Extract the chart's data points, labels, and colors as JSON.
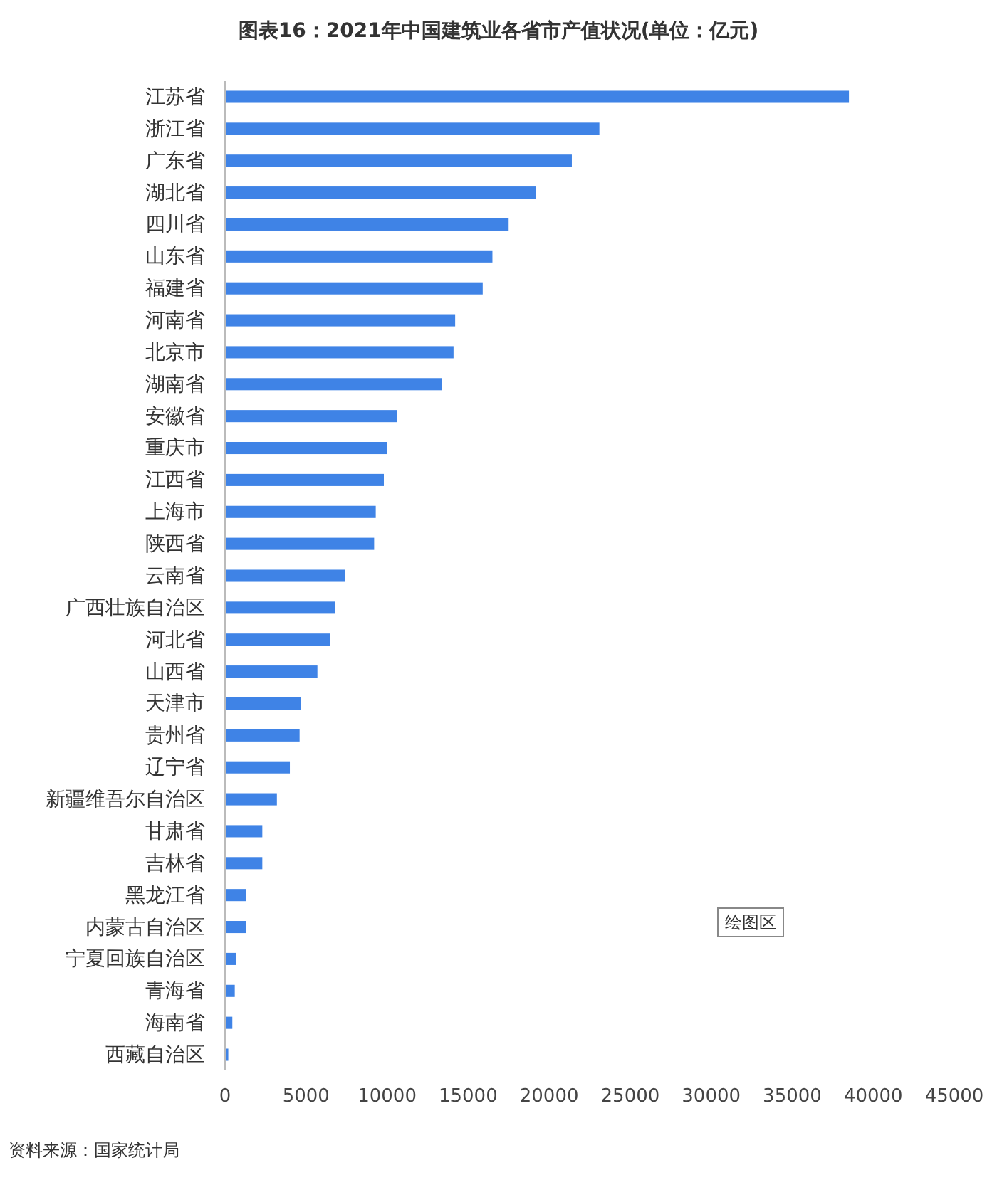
{
  "chart_data": {
    "type": "bar",
    "orientation": "horizontal",
    "title": "图表16：2021年中国建筑业各省市产值状况(单位：亿元)",
    "categories": [
      "江苏省",
      "浙江省",
      "广东省",
      "湖北省",
      "四川省",
      "山东省",
      "福建省",
      "河南省",
      "北京市",
      "湖南省",
      "安徽省",
      "重庆市",
      "江西省",
      "上海市",
      "陕西省",
      "云南省",
      "广西壮族自治区",
      "河北省",
      "山西省",
      "天津市",
      "贵州省",
      "辽宁省",
      "新疆维吾尔自治区",
      "甘肃省",
      "吉林省",
      "黑龙江省",
      "内蒙古自治区",
      "宁夏回族自治区",
      "青海省",
      "海南省",
      "西藏自治区"
    ],
    "values": [
      38500,
      23100,
      21400,
      19200,
      17500,
      16500,
      15900,
      14200,
      14100,
      13400,
      10600,
      10000,
      9800,
      9300,
      9200,
      7400,
      6800,
      6500,
      5700,
      4700,
      4600,
      4000,
      3200,
      2300,
      2300,
      1300,
      1300,
      700,
      600,
      450,
      200
    ],
    "color": "#3f83e6",
    "xlim": [
      0,
      45000
    ],
    "xticks": [
      0,
      5000,
      10000,
      15000,
      20000,
      25000,
      30000,
      35000,
      40000,
      45000
    ],
    "grid": false,
    "annotations": [
      "资料来源：国家统计局",
      "绘图区"
    ]
  }
}
